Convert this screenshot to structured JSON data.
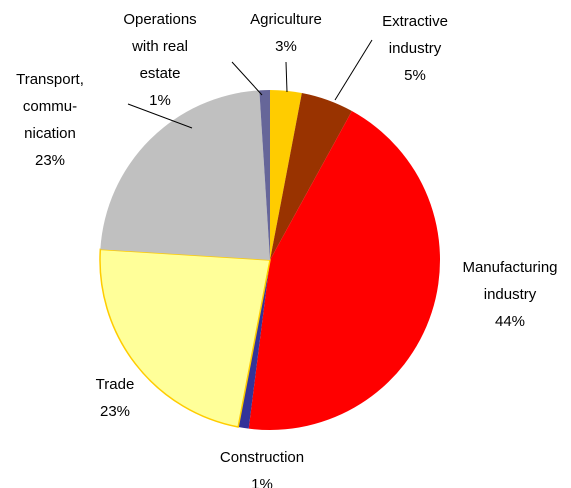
{
  "chart_data": {
    "type": "pie",
    "categories": [
      "Agriculture",
      "Extractive\nindustry",
      "Manufacturing\nindustry",
      "Construction",
      "Trade",
      "Transport,\ncommu-\nnication",
      "Operations\nwith real\nestate"
    ],
    "values": [
      3,
      5,
      44,
      1,
      23,
      23,
      1
    ],
    "value_labels": [
      "3%",
      "5%",
      "44%",
      "1%",
      "23%",
      "23%",
      "1%"
    ],
    "colors": [
      "#ffcc00",
      "#993300",
      "#ff0000",
      "#333399",
      "#ffff99",
      "#c0c0c0",
      "#666699"
    ]
  }
}
